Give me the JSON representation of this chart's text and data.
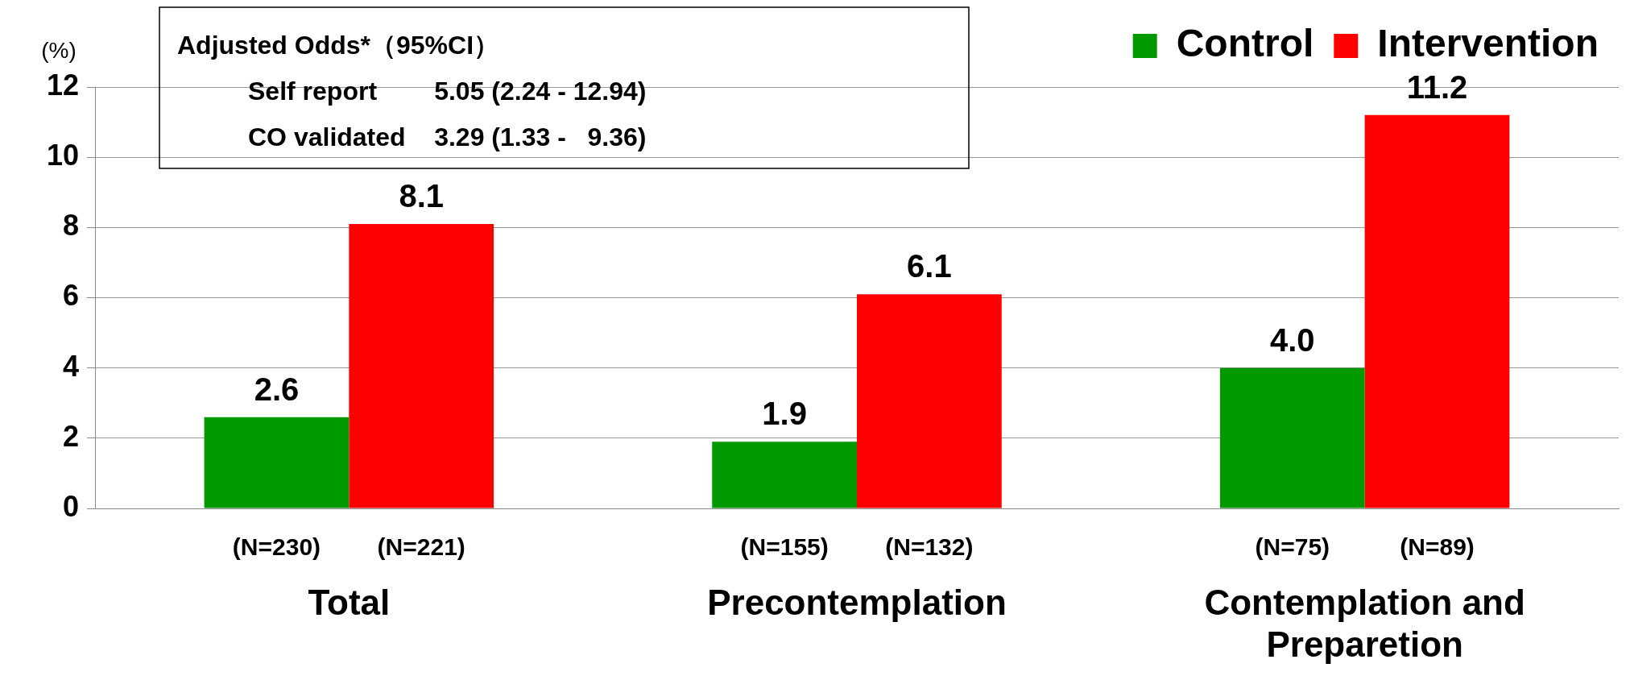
{
  "chart_data": {
    "type": "bar",
    "ylabel": "(%)",
    "categories": [
      "Total",
      "Precontemplation",
      "Contemplation and Preparetion"
    ],
    "series": [
      {
        "name": "Control",
        "color": "#009900",
        "values": [
          2.6,
          1.9,
          4.0
        ],
        "value_labels": [
          "2.6",
          "1.9",
          "4.0"
        ]
      },
      {
        "name": "Intervention",
        "color": "#ff0000",
        "values": [
          8.1,
          6.1,
          11.2
        ],
        "value_labels": [
          "8.1",
          "6.1",
          "11.2"
        ]
      }
    ],
    "ylim": [
      0,
      12
    ],
    "yticks": [
      0,
      2,
      4,
      6,
      8,
      10,
      12
    ],
    "grid": "y",
    "legend": "top right",
    "annotations": [
      "Adjusted Odds*（95%CI）",
      "Self report        5.05 (2.24 - 12.94)",
      "CO validated    3.29 (1.33 -   9.36)",
      "(N=230)",
      "(N=221)",
      "(N=155)",
      "(N=132)",
      "(N=75)",
      "(N=89)"
    ]
  }
}
